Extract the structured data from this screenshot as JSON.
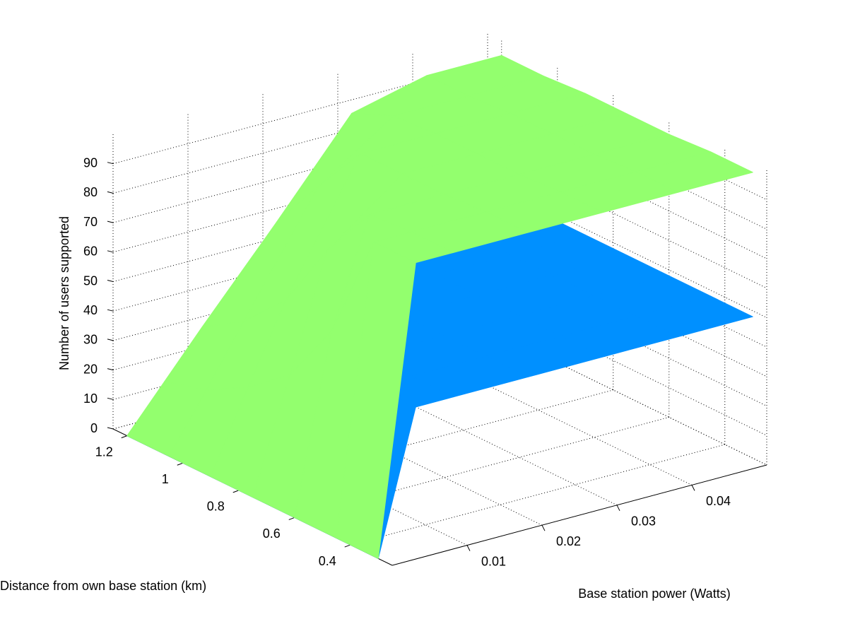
{
  "chart_data": {
    "type": "surface",
    "zlabel": "Number of users supported",
    "ylabel": "Distance from own base station (km)",
    "xlabel": "Base station power (Watts)",
    "x": [
      0,
      0.005,
      0.01,
      0.02,
      0.03,
      0.04,
      0.05
    ],
    "y": [
      0.3,
      0.45,
      0.6,
      0.75,
      0.9,
      1.05,
      1.2
    ],
    "xlim": [
      0,
      0.05
    ],
    "xticks": [
      0.01,
      0.02,
      0.03,
      0.04
    ],
    "ylim": [
      0.25,
      1.25
    ],
    "yticks": [
      0.4,
      0.6,
      0.8,
      1,
      1.2
    ],
    "zlim": [
      0,
      100
    ],
    "zticks": [
      0,
      10,
      20,
      30,
      40,
      50,
      60,
      70,
      80,
      90
    ],
    "grid": true,
    "surfaces": [
      {
        "color": "#0090ff",
        "z": [
          [
            0,
            48,
            48,
            48,
            48,
            48,
            48
          ],
          [
            0,
            48,
            48,
            48,
            48,
            48,
            48
          ],
          [
            0,
            30,
            48,
            48,
            48,
            48,
            48
          ],
          [
            0,
            19,
            38,
            48,
            48,
            48,
            48
          ],
          [
            0,
            13,
            27,
            48,
            48,
            48,
            48
          ],
          [
            0,
            10,
            20,
            39,
            48,
            48,
            48
          ],
          [
            0,
            8,
            15,
            30,
            44,
            48,
            48
          ]
        ]
      },
      {
        "color": "#93ff6e",
        "z": [
          [
            0,
            97,
            97,
            97,
            97,
            97,
            97
          ],
          [
            0,
            97,
            97,
            97,
            97,
            97,
            97
          ],
          [
            0,
            60,
            96,
            96,
            96,
            96,
            96
          ],
          [
            0,
            38,
            77,
            96,
            96,
            96,
            96
          ],
          [
            0,
            27,
            53,
            96,
            96,
            96,
            96
          ],
          [
            0,
            19,
            39,
            78,
            95,
            95,
            95
          ],
          [
            0,
            15,
            30,
            59,
            89,
            95,
            95
          ]
        ]
      }
    ]
  }
}
